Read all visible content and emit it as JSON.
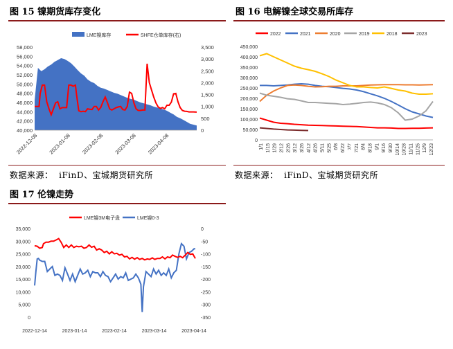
{
  "figures": [
    {
      "title": "图 15   镍期货库存变化",
      "source": "数据来源：  iFinD、宝城期货研究所"
    },
    {
      "title": "图 16   电解镍全球交易所库存",
      "source": "数据来源：  iFinD、宝城期货研究所"
    },
    {
      "title": "图 17   伦镍走势"
    }
  ],
  "colors": {
    "rule": "#8b1a1a",
    "lme_area": "#4472c4",
    "red": "#ff0000",
    "blue": "#4472c4"
  },
  "chart_data": [
    {
      "type": "area",
      "legend": [
        "LME镍库存",
        "SHFE仓单库存(右)"
      ],
      "legend_placement": "top",
      "x_ticks": [
        "2022-12-08",
        "2023-01-08",
        "2023-02-08",
        "2023-03-08",
        "2023-04-08"
      ],
      "y_ticks": [
        "40,000",
        "42,000",
        "44,000",
        "46,000",
        "48,000",
        "50,000",
        "52,000",
        "54,000",
        "56,000",
        "58,000"
      ],
      "y2_ticks": [
        "0",
        "500",
        "1,000",
        "1,500",
        "2,000",
        "2,500",
        "3,000",
        "3,500"
      ],
      "ylim": [
        40000,
        58000
      ],
      "y2lim": [
        0,
        3500
      ],
      "series": [
        {
          "name": "LME镍库存",
          "type": "area",
          "x": [
            0,
            3,
            6,
            9,
            12,
            15,
            18,
            21,
            24,
            27,
            30,
            33,
            36,
            39,
            42,
            45,
            48,
            51,
            54,
            57,
            60,
            63,
            66,
            69,
            72,
            75,
            78,
            81,
            84,
            87,
            90,
            93,
            96,
            99,
            102,
            105,
            108,
            111,
            114,
            117,
            120,
            123,
            126,
            129,
            132,
            135,
            138,
            141,
            144,
            147
          ],
          "values": [
            46500,
            53500,
            52800,
            53200,
            53800,
            54200,
            54800,
            55200,
            55600,
            55400,
            55000,
            54500,
            53800,
            53000,
            52300,
            51800,
            51000,
            50500,
            50200,
            49600,
            49200,
            49000,
            48700,
            48400,
            48100,
            47900,
            47600,
            47300,
            47000,
            46800,
            46600,
            46300,
            46000,
            45800,
            45600,
            45400,
            45100,
            44900,
            44700,
            44500,
            44200,
            43800,
            43400,
            42900,
            42600,
            42200,
            41800,
            41400,
            41200,
            41000
          ]
        },
        {
          "name": "SHFE仓单库存(右)",
          "type": "line",
          "x": [
            0,
            2,
            4,
            5,
            7,
            9,
            11,
            13,
            15,
            17,
            19,
            21,
            23,
            25,
            27,
            29,
            31,
            33,
            35,
            37,
            38,
            40,
            42,
            44,
            46,
            48,
            50,
            52,
            54,
            56,
            58,
            60,
            62,
            64,
            66,
            68,
            70,
            72,
            74,
            76,
            78,
            80,
            82,
            84,
            86,
            88,
            90,
            92,
            94,
            96,
            98,
            100,
            102,
            104,
            106,
            108,
            110,
            112,
            114,
            116,
            118,
            120,
            122,
            124,
            126,
            128,
            130,
            132,
            134,
            136,
            138,
            140,
            142,
            144,
            147
          ],
          "values": [
            1000,
            1000,
            1000,
            1550,
            1900,
            1900,
            1200,
            900,
            650,
            900,
            1150,
            1200,
            900,
            950,
            950,
            950,
            1900,
            1900,
            1850,
            1900,
            1500,
            820,
            780,
            800,
            780,
            900,
            880,
            870,
            1000,
            1000,
            850,
            960,
            1200,
            1400,
            1160,
            900,
            850,
            900,
            950,
            980,
            1000,
            870,
            850,
            1000,
            1600,
            1550,
            1150,
            900,
            830,
            830,
            850,
            850,
            2800,
            2000,
            1700,
            1400,
            1150,
            980,
            920,
            950,
            900,
            1050,
            1050,
            1180,
            1530,
            1550,
            1200,
            950,
            830,
            800,
            790,
            770,
            770,
            770,
            760
          ]
        }
      ]
    },
    {
      "type": "line",
      "legend": [
        "2022",
        "2021",
        "2020",
        "2019",
        "2018",
        "2023"
      ],
      "legend_placement": "top",
      "x_ticks": [
        "1/1",
        "1/15",
        "1/29",
        "2/12",
        "2/26",
        "3/12",
        "3/26",
        "4/12",
        "4/26",
        "5/11",
        "5/25",
        "6/8",
        "6/22",
        "7/7",
        "7/21",
        "8/4",
        "8/18",
        "9/1",
        "9/16",
        "9/30",
        "10/14",
        "10/28",
        "11/11",
        "11/25",
        "12/9",
        "12/23"
      ],
      "y_ticks": [
        "0",
        "50,000",
        "100,000",
        "150,000",
        "200,000",
        "250,000",
        "300,000",
        "350,000",
        "400,000",
        "450,000"
      ],
      "ylim": [
        0,
        450000
      ],
      "series": [
        {
          "name": "2022",
          "x": [
            0,
            1,
            2,
            3,
            4,
            5,
            6,
            7,
            8,
            9,
            10,
            11,
            12,
            13,
            14,
            15,
            16,
            17,
            18,
            19,
            20,
            21,
            22,
            23,
            24,
            25
          ],
          "values": [
            105000,
            95000,
            85000,
            80000,
            78000,
            75000,
            73000,
            71000,
            70000,
            69000,
            68000,
            67000,
            66000,
            65000,
            64000,
            62000,
            60000,
            58000,
            58000,
            57000,
            55000,
            55000,
            56000,
            56000,
            57000,
            58000
          ]
        },
        {
          "name": "2021",
          "x": [
            0,
            1,
            2,
            3,
            4,
            5,
            6,
            7,
            8,
            9,
            10,
            11,
            12,
            13,
            14,
            15,
            16,
            17,
            18,
            19,
            20,
            21,
            22,
            23,
            24,
            25
          ],
          "values": [
            262000,
            262000,
            260000,
            262000,
            264000,
            268000,
            270000,
            268000,
            262000,
            258000,
            256000,
            252000,
            248000,
            245000,
            240000,
            232000,
            222000,
            212000,
            200000,
            185000,
            168000,
            150000,
            135000,
            125000,
            115000,
            108000
          ]
        },
        {
          "name": "2020",
          "x": [
            0,
            1,
            2,
            3,
            4,
            5,
            6,
            7,
            8,
            9,
            10,
            11,
            12,
            13,
            14,
            15,
            16,
            17,
            18,
            19,
            20,
            21,
            22,
            23,
            24,
            25
          ],
          "values": [
            185000,
            215000,
            235000,
            250000,
            262000,
            264000,
            262000,
            258000,
            255000,
            256000,
            258000,
            258000,
            260000,
            260000,
            260000,
            262000,
            264000,
            265000,
            266000,
            266000,
            266000,
            265000,
            265000,
            264000,
            265000,
            266000
          ]
        },
        {
          "name": "2019",
          "x": [
            0,
            1,
            2,
            3,
            4,
            5,
            6,
            7,
            8,
            9,
            10,
            11,
            12,
            13,
            14,
            15,
            16,
            17,
            18,
            19,
            20,
            21,
            22,
            23,
            24,
            25
          ],
          "values": [
            225000,
            215000,
            210000,
            205000,
            198000,
            195000,
            188000,
            180000,
            180000,
            178000,
            176000,
            174000,
            170000,
            172000,
            176000,
            180000,
            182000,
            178000,
            170000,
            155000,
            130000,
            95000,
            100000,
            115000,
            140000,
            185000
          ]
        },
        {
          "name": "2018",
          "x": [
            0,
            1,
            2,
            3,
            4,
            5,
            6,
            7,
            8,
            9,
            10,
            11,
            12,
            13,
            14,
            15,
            16,
            17,
            18,
            19,
            20,
            21,
            22,
            23,
            24,
            25
          ],
          "values": [
            405000,
            415000,
            400000,
            385000,
            370000,
            355000,
            345000,
            338000,
            330000,
            318000,
            305000,
            288000,
            275000,
            262000,
            255000,
            255000,
            252000,
            250000,
            255000,
            248000,
            240000,
            235000,
            225000,
            220000,
            220000,
            222000
          ]
        },
        {
          "name": "2023",
          "x": [
            0,
            1,
            2,
            3,
            4,
            5,
            6,
            7
          ],
          "values": [
            58000,
            55000,
            52000,
            50000,
            48000,
            47000,
            46000,
            45000
          ]
        }
      ]
    },
    {
      "type": "line",
      "legend": [
        "LME镍3M电子盘",
        "LME镍0-3"
      ],
      "legend_placement": "top",
      "x_ticks": [
        "2022-12-14",
        "2023-01-14",
        "2023-02-14",
        "2023-03-14",
        "2023-04-14"
      ],
      "y_ticks": [
        "0",
        "5,000",
        "10,000",
        "15,000",
        "20,000",
        "25,000",
        "30,000",
        "35,000"
      ],
      "y2_ticks": [
        "-350",
        "-300",
        "-250",
        "-200",
        "-150",
        "-100",
        "-50",
        "0"
      ],
      "ylim": [
        0,
        35000
      ],
      "y2lim": [
        -350,
        0
      ],
      "series": [
        {
          "name": "LME镍3M电子盘",
          "x": [
            0,
            2,
            4,
            6,
            7,
            9,
            11,
            13,
            15,
            17,
            19,
            21,
            23,
            25,
            27,
            29,
            31,
            33,
            35,
            37,
            39,
            41,
            43,
            45,
            47,
            49,
            51,
            53,
            55,
            57,
            59,
            61,
            63,
            65,
            67,
            69,
            71,
            73,
            75,
            77,
            79,
            81,
            83,
            85,
            87,
            89,
            91,
            93,
            95,
            97,
            99,
            101,
            103,
            105,
            107,
            109,
            111,
            113,
            115,
            117,
            119,
            121,
            123,
            125,
            127
          ],
          "values": [
            28200,
            28000,
            27200,
            27500,
            29000,
            29600,
            29600,
            30000,
            30000,
            30500,
            31000,
            29500,
            27500,
            28500,
            27500,
            28500,
            27500,
            28000,
            27800,
            28000,
            27200,
            27500,
            28500,
            27600,
            28000,
            26500,
            27000,
            26500,
            25500,
            26000,
            25000,
            25800,
            25000,
            25200,
            24500,
            24800,
            23800,
            24000,
            23000,
            23600,
            22900,
            23500,
            22800,
            23200,
            22600,
            23000,
            22800,
            23400,
            22800,
            23200,
            23200,
            23800,
            23000,
            23800,
            23500,
            24500,
            24000,
            23600,
            24000,
            23500,
            24500,
            25500,
            24800,
            25000,
            23200
          ]
        },
        {
          "name": "LME镍0-3",
          "x": [
            0,
            1,
            2,
            3,
            4,
            6,
            8,
            10,
            12,
            14,
            16,
            18,
            20,
            22,
            24,
            26,
            28,
            30,
            32,
            34,
            36,
            38,
            40,
            42,
            44,
            46,
            48,
            50,
            52,
            54,
            56,
            58,
            60,
            62,
            64,
            66,
            68,
            70,
            72,
            74,
            76,
            78,
            80,
            82,
            84,
            85,
            86,
            88,
            90,
            92,
            94,
            96,
            98,
            100,
            102,
            104,
            106,
            108,
            110,
            112,
            114,
            116,
            118,
            120,
            122,
            124,
            126,
            127
          ],
          "values": [
            -225,
            -170,
            -120,
            -118,
            -125,
            -130,
            -130,
            -170,
            -160,
            -150,
            -185,
            -180,
            -185,
            -205,
            -155,
            -180,
            -205,
            -180,
            -210,
            -185,
            -160,
            -180,
            -175,
            -165,
            -190,
            -170,
            -175,
            -175,
            -190,
            -170,
            -185,
            -190,
            -210,
            -195,
            -180,
            -200,
            -190,
            -195,
            -175,
            -205,
            -200,
            -195,
            -180,
            -195,
            -220,
            -330,
            -230,
            -170,
            -180,
            -190,
            -160,
            -180,
            -165,
            -185,
            -175,
            -185,
            -160,
            -195,
            -175,
            -165,
            -100,
            -60,
            -70,
            -120,
            -95,
            -90,
            -80,
            -80
          ]
        }
      ]
    }
  ]
}
